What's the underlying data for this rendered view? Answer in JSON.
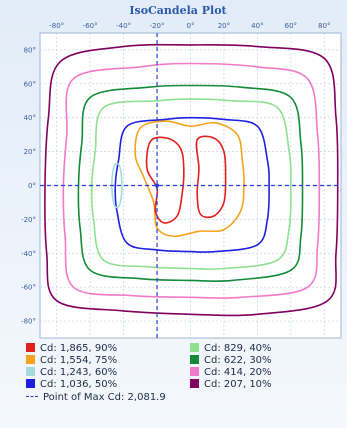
{
  "chart_data": {
    "type": "contour",
    "title": "IsoCandela Plot",
    "x_ticks": [
      "-80°",
      "-60°",
      "-40°",
      "-20°",
      "0°",
      "20°",
      "40°",
      "60°",
      "80°"
    ],
    "y_ticks": [
      "80°",
      "60°",
      "40°",
      "20°",
      "0°",
      "-20°",
      "-40°",
      "-60°",
      "-80°"
    ],
    "xlim": [
      -90,
      90
    ],
    "ylim": [
      -90,
      90
    ],
    "grid": true,
    "legend": [
      {
        "label": "Cd: 1,865, 90%",
        "color": "#e0201c"
      },
      {
        "label": "Cd: 829, 40%",
        "color": "#8fe08f"
      },
      {
        "label": "Cd: 1,554, 75%",
        "color": "#f5a31e"
      },
      {
        "label": "Cd: 622, 30%",
        "color": "#138a38"
      },
      {
        "label": "Cd: 1,243, 60%",
        "color": "#a4dcdc"
      },
      {
        "label": "Cd: 414, 20%",
        "color": "#f07ac8"
      },
      {
        "label": "Cd: 1,036, 50%",
        "color": "#1f1fe0"
      },
      {
        "label": "Cd: 207, 10%",
        "color": "#800060"
      }
    ],
    "max_point": {
      "label": "Point of Max Cd: 2,081.9",
      "x": -20,
      "y": 0
    },
    "contours": [
      {
        "color": "#800060",
        "series": [
          {
            "x": -78,
            "y": 73
          },
          {
            "x": -40,
            "y": 82
          },
          {
            "x": 0,
            "y": 83
          },
          {
            "x": 40,
            "y": 82
          },
          {
            "x": 80,
            "y": 75
          },
          {
            "x": 87,
            "y": 40
          },
          {
            "x": 88,
            "y": 0
          },
          {
            "x": 87,
            "y": -40
          },
          {
            "x": 82,
            "y": -68
          },
          {
            "x": 40,
            "y": -76
          },
          {
            "x": 0,
            "y": -76
          },
          {
            "x": -40,
            "y": -74
          },
          {
            "x": -80,
            "y": -68
          },
          {
            "x": -86,
            "y": -40
          },
          {
            "x": -87,
            "y": 0
          },
          {
            "x": -85,
            "y": 40
          }
        ]
      },
      {
        "color": "#f07ac8",
        "series": [
          {
            "x": -70,
            "y": 63
          },
          {
            "x": -30,
            "y": 70
          },
          {
            "x": 0,
            "y": 72
          },
          {
            "x": 40,
            "y": 70
          },
          {
            "x": 70,
            "y": 63
          },
          {
            "x": 76,
            "y": 30
          },
          {
            "x": 77,
            "y": 0
          },
          {
            "x": 76,
            "y": -35
          },
          {
            "x": 70,
            "y": -60
          },
          {
            "x": 30,
            "y": -66
          },
          {
            "x": 0,
            "y": -66
          },
          {
            "x": -35,
            "y": -65
          },
          {
            "x": -70,
            "y": -60
          },
          {
            "x": -75,
            "y": -30
          },
          {
            "x": -76,
            "y": 0
          },
          {
            "x": -74,
            "y": 30
          }
        ]
      },
      {
        "color": "#138a38",
        "series": [
          {
            "x": -60,
            "y": 52
          },
          {
            "x": -25,
            "y": 58
          },
          {
            "x": 0,
            "y": 59
          },
          {
            "x": 30,
            "y": 58
          },
          {
            "x": 60,
            "y": 52
          },
          {
            "x": 66,
            "y": 25
          },
          {
            "x": 67,
            "y": 0
          },
          {
            "x": 66,
            "y": -30
          },
          {
            "x": 60,
            "y": -50
          },
          {
            "x": 25,
            "y": -56
          },
          {
            "x": 0,
            "y": -56
          },
          {
            "x": -30,
            "y": -55
          },
          {
            "x": -60,
            "y": -50
          },
          {
            "x": -66,
            "y": -25
          },
          {
            "x": -67,
            "y": 0
          },
          {
            "x": -65,
            "y": 25
          }
        ]
      },
      {
        "color": "#8fe08f",
        "series": [
          {
            "x": -52,
            "y": 46
          },
          {
            "x": -20,
            "y": 50
          },
          {
            "x": 0,
            "y": 51
          },
          {
            "x": 25,
            "y": 50
          },
          {
            "x": 52,
            "y": 46
          },
          {
            "x": 59,
            "y": 20
          },
          {
            "x": 60,
            "y": 0
          },
          {
            "x": 59,
            "y": -25
          },
          {
            "x": 52,
            "y": -44
          },
          {
            "x": 20,
            "y": -49
          },
          {
            "x": 0,
            "y": -49
          },
          {
            "x": -25,
            "y": -48
          },
          {
            "x": -52,
            "y": -44
          },
          {
            "x": -58,
            "y": -20
          },
          {
            "x": -59,
            "y": 0
          },
          {
            "x": -57,
            "y": 20
          }
        ]
      },
      {
        "color": "#1f1fe0",
        "series": [
          {
            "x": -38,
            "y": 35
          },
          {
            "x": -15,
            "y": 39
          },
          {
            "x": 0,
            "y": 40
          },
          {
            "x": 20,
            "y": 39
          },
          {
            "x": 40,
            "y": 35
          },
          {
            "x": 46,
            "y": 15
          },
          {
            "x": 47,
            "y": 0
          },
          {
            "x": 46,
            "y": -20
          },
          {
            "x": 40,
            "y": -35
          },
          {
            "x": 15,
            "y": -39
          },
          {
            "x": 0,
            "y": -39
          },
          {
            "x": -20,
            "y": -38
          },
          {
            "x": -38,
            "y": -34
          },
          {
            "x": -44,
            "y": -15
          },
          {
            "x": -45,
            "y": 0
          },
          {
            "x": -43,
            "y": 15
          }
        ]
      },
      {
        "color": "#f5a31e",
        "series": [
          {
            "x": -30,
            "y": 34
          },
          {
            "x": -15,
            "y": 38
          },
          {
            "x": 0,
            "y": 35
          },
          {
            "x": 15,
            "y": 37
          },
          {
            "x": 28,
            "y": 30
          },
          {
            "x": 31,
            "y": 15
          },
          {
            "x": 32,
            "y": 0
          },
          {
            "x": 30,
            "y": -15
          },
          {
            "x": 20,
            "y": -26
          },
          {
            "x": 5,
            "y": -27
          },
          {
            "x": -10,
            "y": -30
          },
          {
            "x": -20,
            "y": -25
          },
          {
            "x": -22,
            "y": -10
          },
          {
            "x": -28,
            "y": 5
          },
          {
            "x": -33,
            "y": 18
          }
        ]
      },
      {
        "color": "#e0201c",
        "series": [
          {
            "x": -24,
            "y": 26
          },
          {
            "x": -14,
            "y": 28
          },
          {
            "x": -6,
            "y": 22
          },
          {
            "x": -4,
            "y": 10
          },
          {
            "x": -5,
            "y": -5
          },
          {
            "x": -8,
            "y": -18
          },
          {
            "x": -16,
            "y": -22
          },
          {
            "x": -21,
            "y": -15
          },
          {
            "x": -20,
            "y": -2
          },
          {
            "x": -26,
            "y": 10
          }
        ]
      },
      {
        "color": "#e0201c",
        "series": [
          {
            "x": 4,
            "y": 27
          },
          {
            "x": 14,
            "y": 28
          },
          {
            "x": 20,
            "y": 20
          },
          {
            "x": 21,
            "y": 5
          },
          {
            "x": 20,
            "y": -10
          },
          {
            "x": 14,
            "y": -18
          },
          {
            "x": 6,
            "y": -17
          },
          {
            "x": 4,
            "y": -5
          },
          {
            "x": 5,
            "y": 10
          }
        ]
      },
      {
        "color": "#a4dcdc",
        "series": [
          {
            "x": -46,
            "y": 10
          },
          {
            "x": -44,
            "y": 13
          },
          {
            "x": -42,
            "y": 10
          },
          {
            "x": -41,
            "y": 0
          },
          {
            "x": -42,
            "y": -10
          },
          {
            "x": -44,
            "y": -13
          },
          {
            "x": -46,
            "y": -10
          },
          {
            "x": -47,
            "y": 0
          }
        ]
      }
    ]
  }
}
